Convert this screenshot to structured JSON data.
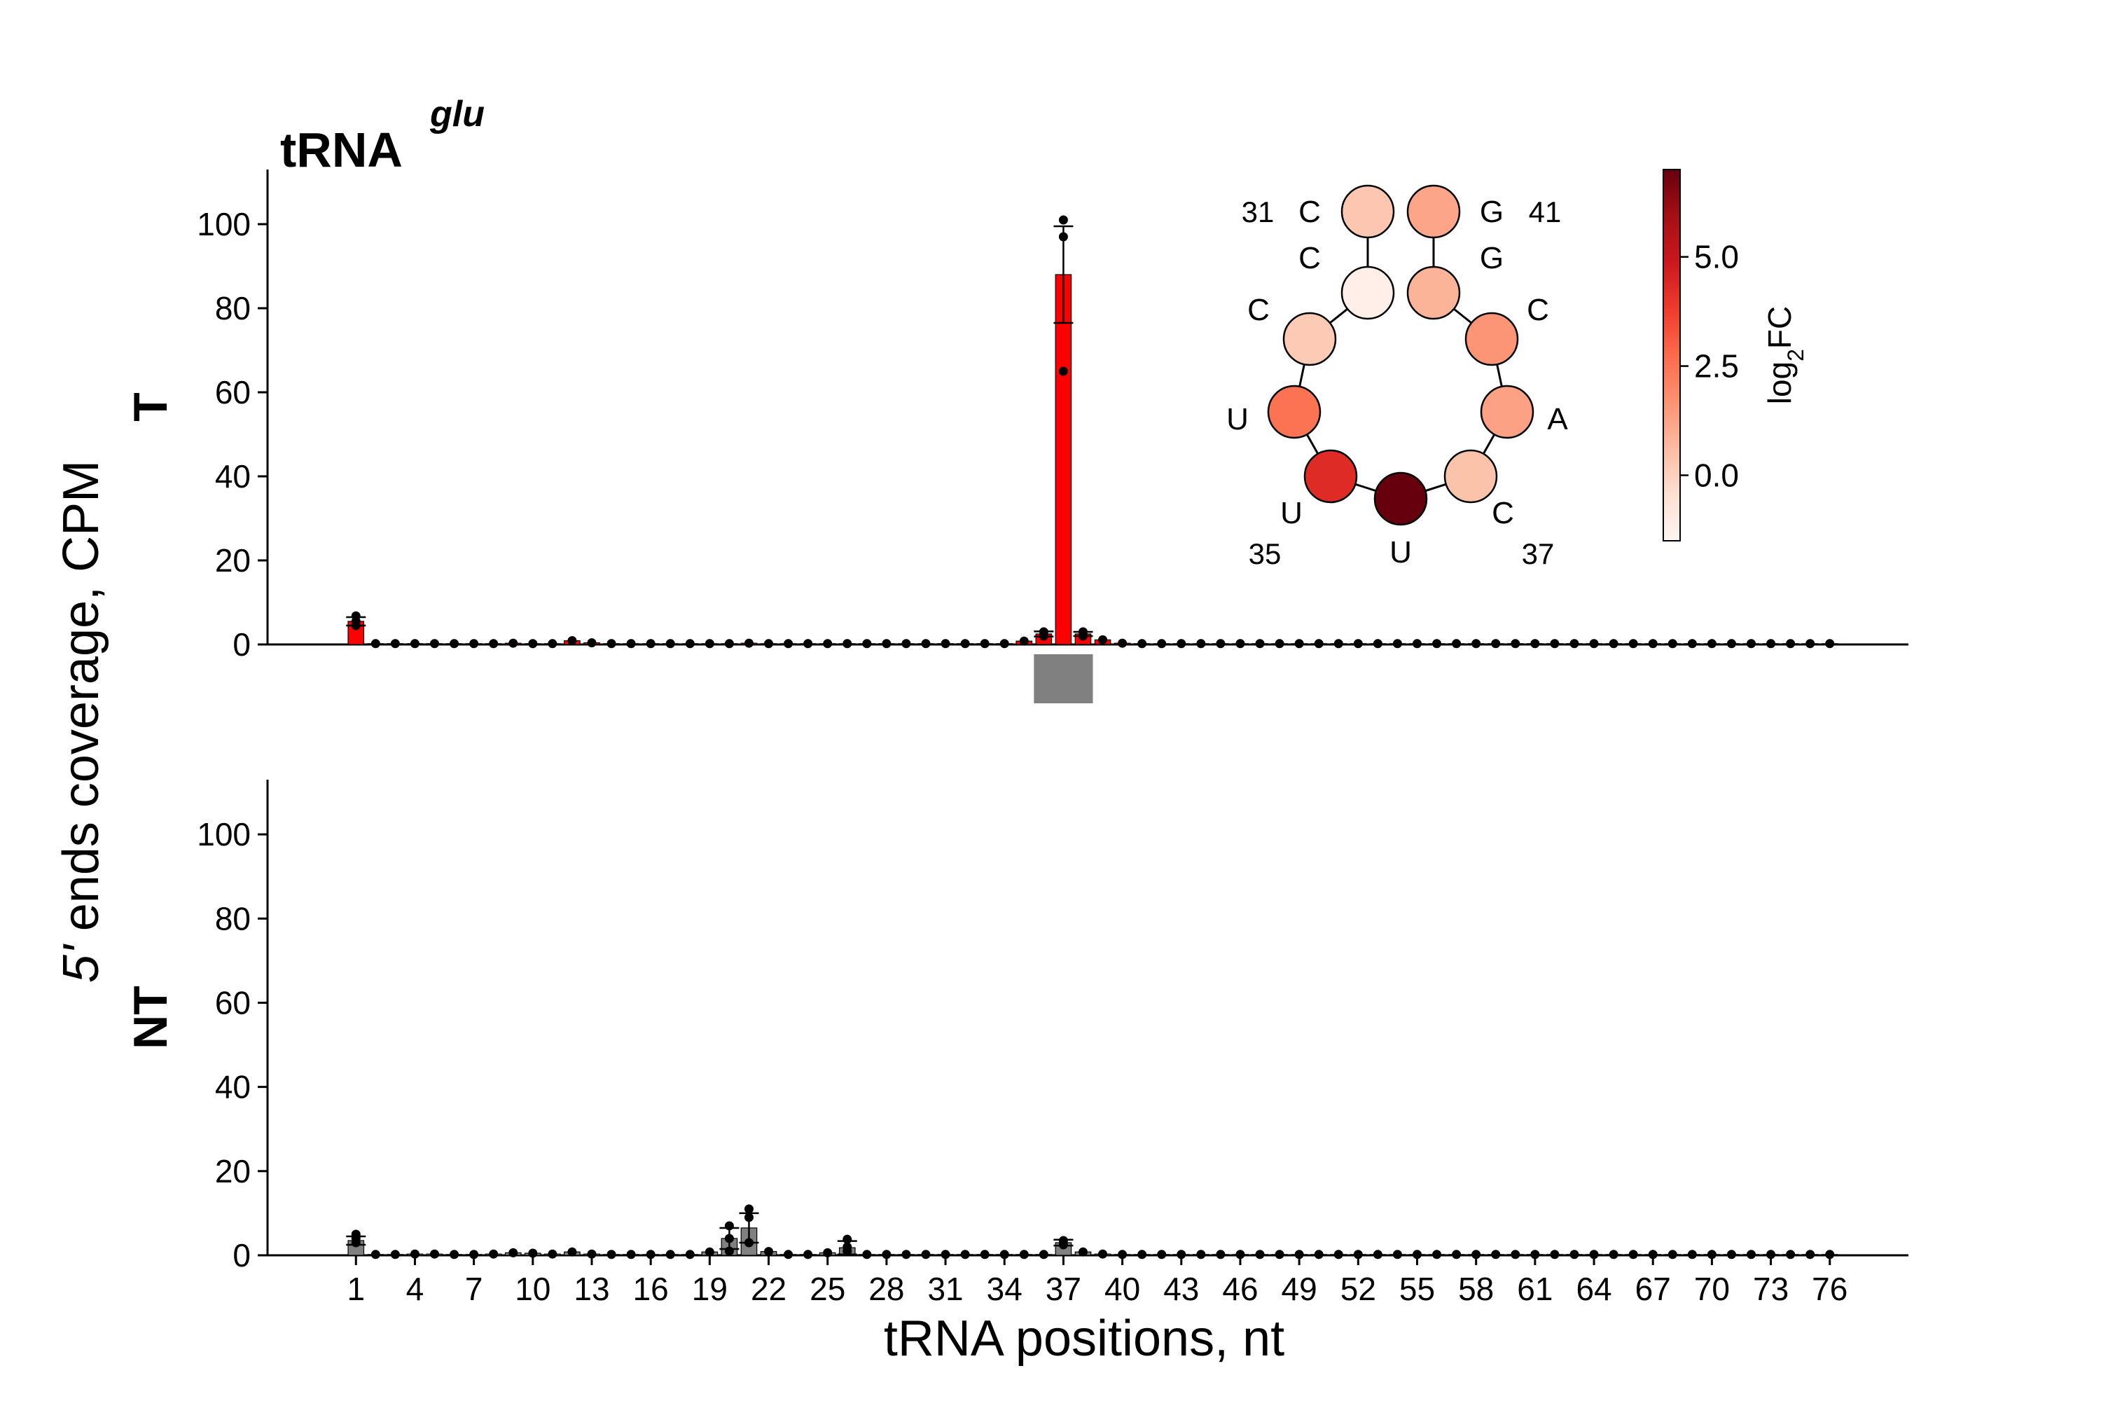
{
  "title": "tRNA",
  "title_superscript": "glu",
  "ylabel_prefix": "5'",
  "ylabel_rest": " ends coverage, CPM",
  "xlabel": "tRNA positions, nt",
  "colors": {
    "treated": "#ff0000",
    "untreated": "#808080",
    "highlight_box": "#808080"
  },
  "chart_data": [
    {
      "type": "bar",
      "panel": "T",
      "ylim": [
        0,
        113
      ],
      "yticks": [
        0,
        20,
        40,
        60,
        80,
        100
      ],
      "xlim": [
        -3.5,
        80
      ],
      "x": [
        1,
        2,
        3,
        4,
        5,
        6,
        7,
        8,
        9,
        10,
        11,
        12,
        13,
        14,
        15,
        16,
        17,
        18,
        19,
        20,
        21,
        22,
        23,
        24,
        25,
        26,
        27,
        28,
        29,
        30,
        31,
        32,
        33,
        34,
        35,
        36,
        37,
        38,
        39,
        40,
        41,
        42,
        43,
        44,
        45,
        46,
        47,
        48,
        49,
        50,
        51,
        52,
        53,
        54,
        55,
        56,
        57,
        58,
        59,
        60,
        61,
        62,
        63,
        64,
        65,
        66,
        67,
        68,
        69,
        70,
        71,
        72,
        73,
        74,
        75,
        76
      ],
      "xticks": [
        1,
        4,
        7,
        10,
        13,
        16,
        19,
        22,
        25,
        28,
        31,
        34,
        37,
        40,
        43,
        46,
        49,
        52,
        55,
        58,
        61,
        64,
        67,
        70,
        73,
        76
      ],
      "values": [
        5.5,
        0.2,
        0.2,
        0.2,
        0.2,
        0.2,
        0.2,
        0.2,
        0.3,
        0.2,
        0.2,
        0.9,
        0.4,
        0.2,
        0.2,
        0.2,
        0.2,
        0.2,
        0.2,
        0.2,
        0.3,
        0.2,
        0.2,
        0.2,
        0.2,
        0.2,
        0.2,
        0.2,
        0.2,
        0.2,
        0.2,
        0.2,
        0.2,
        0.2,
        0.8,
        2.5,
        88,
        2.5,
        1.1,
        0.3,
        0.2,
        0.2,
        0.2,
        0.2,
        0.2,
        0.2,
        0.2,
        0.2,
        0.2,
        0.2,
        0.2,
        0.2,
        0.2,
        0.2,
        0.2,
        0.2,
        0.2,
        0.2,
        0.2,
        0.2,
        0.2,
        0.2,
        0.2,
        0.2,
        0.2,
        0.2,
        0.2,
        0.2,
        0.2,
        0.2,
        0.2,
        0.2,
        0.2,
        0.2,
        0.2,
        0.2
      ],
      "errors": {
        "1": 1.0,
        "36": 0.6,
        "37": 11.5,
        "38": 0.5
      },
      "replicates": {
        "1": [
          4.5,
          5.5,
          6.8
        ],
        "36": [
          2.0,
          3.0
        ],
        "37": [
          65,
          97,
          101
        ],
        "38": [
          2.0,
          3.0
        ]
      },
      "highlight_range": [
        36,
        38
      ]
    },
    {
      "type": "bar",
      "panel": "NT",
      "ylim": [
        0,
        113
      ],
      "yticks": [
        0,
        20,
        40,
        60,
        80,
        100
      ],
      "xlim": [
        -3.5,
        80
      ],
      "x": [
        1,
        2,
        3,
        4,
        5,
        6,
        7,
        8,
        9,
        10,
        11,
        12,
        13,
        14,
        15,
        16,
        17,
        18,
        19,
        20,
        21,
        22,
        23,
        24,
        25,
        26,
        27,
        28,
        29,
        30,
        31,
        32,
        33,
        34,
        35,
        36,
        37,
        38,
        39,
        40,
        41,
        42,
        43,
        44,
        45,
        46,
        47,
        48,
        49,
        50,
        51,
        52,
        53,
        54,
        55,
        56,
        57,
        58,
        59,
        60,
        61,
        62,
        63,
        64,
        65,
        66,
        67,
        68,
        69,
        70,
        71,
        72,
        73,
        74,
        75,
        76
      ],
      "xticks": [
        1,
        4,
        7,
        10,
        13,
        16,
        19,
        22,
        25,
        28,
        31,
        34,
        37,
        40,
        43,
        46,
        49,
        52,
        55,
        58,
        61,
        64,
        67,
        70,
        73,
        76
      ],
      "values": [
        3.5,
        0.2,
        0.2,
        0.3,
        0.3,
        0.2,
        0.2,
        0.3,
        0.6,
        0.5,
        0.3,
        0.8,
        0.3,
        0.2,
        0.2,
        0.2,
        0.2,
        0.2,
        0.8,
        4.0,
        6.5,
        0.9,
        0.2,
        0.2,
        0.6,
        1.8,
        0.2,
        0.2,
        0.2,
        0.2,
        0.2,
        0.2,
        0.2,
        0.2,
        0.2,
        0.2,
        3.0,
        0.8,
        0.3,
        0.2,
        0.2,
        0.2,
        0.2,
        0.2,
        0.2,
        0.2,
        0.2,
        0.2,
        0.2,
        0.2,
        0.2,
        0.2,
        0.2,
        0.2,
        0.2,
        0.2,
        0.2,
        0.2,
        0.2,
        0.2,
        0.2,
        0.2,
        0.2,
        0.2,
        0.2,
        0.2,
        0.2,
        0.2,
        0.2,
        0.2,
        0.2,
        0.2,
        0.2,
        0.2,
        0.2,
        0.2
      ],
      "errors": {
        "1": 1.0,
        "20": 2.5,
        "21": 3.5,
        "26": 1.6,
        "37": 0.7
      },
      "replicates": {
        "1": [
          3.0,
          4.0,
          5.0
        ],
        "20": [
          1.0,
          4.0,
          7.0
        ],
        "21": [
          3.0,
          9.0,
          11.0
        ],
        "26": [
          1.0,
          2.0,
          3.8
        ],
        "37": [
          2.5,
          3.5
        ]
      }
    },
    {
      "type": "anticodon-loop-heatmap",
      "colorbar_label_base": "log",
      "colorbar_label_sub": "2",
      "colorbar_label_rest": "FC",
      "colorbar_range": [
        -1.5,
        7.0
      ],
      "colorbar_ticks": [
        0.0,
        2.5,
        5.0
      ],
      "colorbar_tick_labels": [
        "0.0",
        "2.5",
        "5.0"
      ],
      "nucleotides": [
        {
          "position": 31,
          "base": "C",
          "log2fc": 0.3,
          "number_label": "31"
        },
        {
          "position": 32,
          "base": "C",
          "log2fc": -1.2,
          "number_label": ""
        },
        {
          "position": 33,
          "base": "C",
          "log2fc": 0.2,
          "number_label": ""
        },
        {
          "position": 34,
          "base": "U",
          "log2fc": 2.5,
          "number_label": ""
        },
        {
          "position": 35,
          "base": "U",
          "log2fc": 4.3,
          "number_label": "35"
        },
        {
          "position": 36,
          "base": "U",
          "log2fc": 7.0,
          "number_label": ""
        },
        {
          "position": 37,
          "base": "C",
          "log2fc": 0.4,
          "number_label": "37"
        },
        {
          "position": 38,
          "base": "A",
          "log2fc": 1.3,
          "number_label": ""
        },
        {
          "position": 39,
          "base": "C",
          "log2fc": 1.6,
          "number_label": ""
        },
        {
          "position": 40,
          "base": "G",
          "log2fc": 0.8,
          "number_label": ""
        },
        {
          "position": 41,
          "base": "G",
          "log2fc": 1.2,
          "number_label": "41"
        }
      ]
    }
  ]
}
